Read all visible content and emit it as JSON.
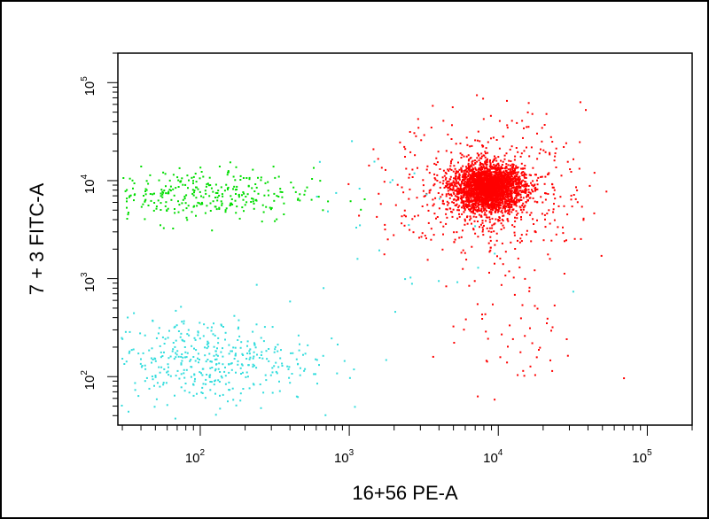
{
  "chart_data": {
    "type": "scatter",
    "title": "",
    "xlabel": "16+56 PE-A",
    "ylabel": "7 + 3 FITC-A",
    "x_scale": "log",
    "y_scale": "log",
    "xlim": [
      28,
      200000
    ],
    "ylim": [
      32,
      200000
    ],
    "grid": false,
    "legend": "none",
    "x_ticks": [
      {
        "base": "10",
        "exp": "2",
        "value": 100
      },
      {
        "base": "10",
        "exp": "3",
        "value": 1000
      },
      {
        "base": "10",
        "exp": "4",
        "value": 10000
      },
      {
        "base": "10",
        "exp": "5",
        "value": 100000
      }
    ],
    "y_ticks": [
      {
        "base": "10",
        "exp": "2",
        "value": 100
      },
      {
        "base": "10",
        "exp": "3",
        "value": 1000
      },
      {
        "base": "10",
        "exp": "4",
        "value": 10000
      },
      {
        "base": "10",
        "exp": "5",
        "value": 100000
      }
    ],
    "populations": [
      {
        "color": "#ff0000",
        "center": [
          8500,
          8500
        ],
        "spread_decades": [
          0.12,
          0.12
        ],
        "count": 2600
      },
      {
        "color": "#ff0000",
        "center": [
          8500,
          8000
        ],
        "spread_decades": [
          0.32,
          0.38
        ],
        "count": 520
      },
      {
        "color": "#ff0000",
        "center": [
          12000,
          250
        ],
        "spread_decades": [
          0.25,
          0.3
        ],
        "count": 55
      },
      {
        "color": "#00dd00",
        "center": [
          90,
          7200
        ],
        "spread_decades": [
          0.4,
          0.14
        ],
        "count": 340
      },
      {
        "color": "#33dddd",
        "center": [
          110,
          150
        ],
        "spread_decades": [
          0.35,
          0.22
        ],
        "count": 420
      },
      {
        "color": "#33dddd",
        "center": [
          1500,
          3000
        ],
        "spread_decades": [
          0.4,
          0.6
        ],
        "count": 30
      }
    ]
  }
}
